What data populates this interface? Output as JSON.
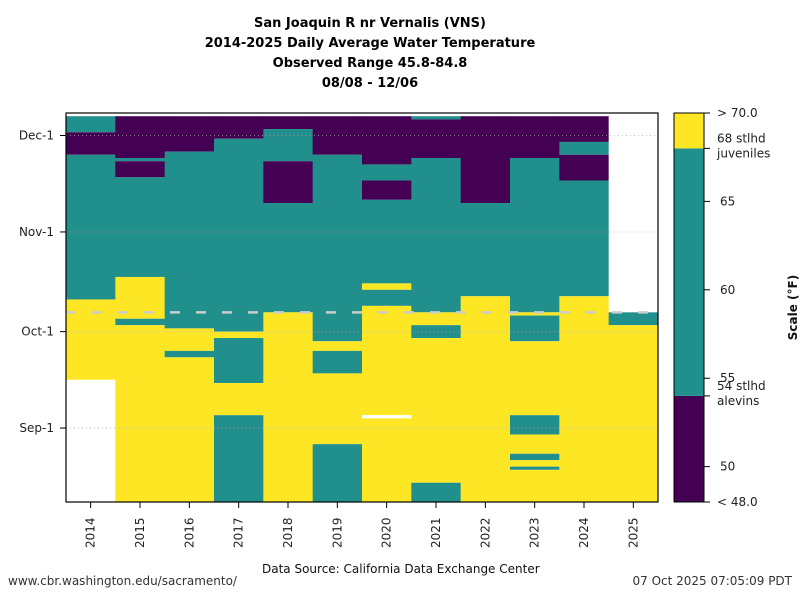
{
  "title_lines": [
    "San Joaquin R nr Vernalis (VNS)",
    "2014-2025 Daily Average Water Temperature",
    "Observed Range 45.8-84.8",
    "08/08 - 12/06"
  ],
  "footer": {
    "left": "www.cbr.washington.edu/sacramento/",
    "center": "Data Source: California Data Exchange Center",
    "right": "07 Oct 2025 07:05:09 PDT"
  },
  "chart_data": {
    "type": "heatmap",
    "title": "San Joaquin R nr Vernalis (VNS) 2014-2025 Daily Average Water Temperature",
    "subtitle": "Observed Range 45.8-84.8; 08/08 - 12/06",
    "xlabel": "",
    "ylabel": "",
    "date_range": [
      "08/08",
      "12/06"
    ],
    "x_categories": [
      "2014",
      "2015",
      "2016",
      "2017",
      "2018",
      "2019",
      "2020",
      "2021",
      "2022",
      "2023",
      "2024",
      "2025"
    ],
    "y_ticks": [
      {
        "label": "Sep-1",
        "date": "09/01"
      },
      {
        "label": "Oct-1",
        "date": "10/01"
      },
      {
        "label": "Nov-1",
        "date": "11/01"
      },
      {
        "label": "Dec-1",
        "date": "12/01"
      }
    ],
    "grid": true,
    "colors": {
      "low": "#440154",
      "mid": "#21908d",
      "high": "#fde725",
      "missing": "#ffffff"
    },
    "bins": [
      {
        "key": "low",
        "label": "< 54 (stlhd alevins)",
        "range": [
          48.0,
          54
        ]
      },
      {
        "key": "mid",
        "label": "54-68",
        "range": [
          54,
          68
        ]
      },
      {
        "key": "high",
        "label": "> 68 (stlhd juveniles)",
        "range": [
          68,
          70.0
        ]
      }
    ],
    "colorbar": {
      "label": "Scale (°F)",
      "min_label": "< 48.0",
      "max_label": "> 70.0",
      "min": 48.0,
      "max": 70.0,
      "ticks": [
        {
          "value": 50,
          "label": "50"
        },
        {
          "value": 55,
          "label": "55"
        },
        {
          "value": 60,
          "label": "60"
        },
        {
          "value": 65,
          "label": "65"
        }
      ],
      "thresholds": [
        {
          "value": 54,
          "label_lines": [
            "54 stlhd",
            "alevins"
          ]
        },
        {
          "value": 68,
          "label_lines": [
            "68 stlhd",
            "juveniles"
          ]
        }
      ]
    },
    "today_marker": {
      "date": "10/07",
      "style": "dashed"
    },
    "series": [
      {
        "name": "2014",
        "segments": [
          [
            "12/06",
            "12/01",
            "mid"
          ],
          [
            "12/01",
            "11/24",
            "low"
          ],
          [
            "11/24",
            "10/10",
            "mid"
          ],
          [
            "10/10",
            "09/15",
            "high"
          ],
          [
            "09/15",
            "08/08",
            null
          ]
        ]
      },
      {
        "name": "2015",
        "segments": [
          [
            "12/06",
            "11/23",
            "low"
          ],
          [
            "11/23",
            "11/22",
            "mid"
          ],
          [
            "11/22",
            "11/17",
            "low"
          ],
          [
            "11/17",
            "10/17",
            "mid"
          ],
          [
            "10/17",
            "10/04",
            "high"
          ],
          [
            "10/04",
            "10/02",
            "mid"
          ],
          [
            "10/02",
            "08/08",
            "high"
          ]
        ]
      },
      {
        "name": "2016",
        "segments": [
          [
            "12/06",
            "11/25",
            "low"
          ],
          [
            "11/25",
            "10/01",
            "mid"
          ],
          [
            "10/01",
            "09/24",
            "high"
          ],
          [
            "09/24",
            "09/22",
            "mid"
          ],
          [
            "09/22",
            "08/08",
            "high"
          ]
        ]
      },
      {
        "name": "2017",
        "segments": [
          [
            "12/06",
            "11/29",
            "low"
          ],
          [
            "11/29",
            "09/30",
            "mid"
          ],
          [
            "09/30",
            "09/28",
            "high"
          ],
          [
            "09/28",
            "09/14",
            "mid"
          ],
          [
            "09/14",
            "09/04",
            "high"
          ],
          [
            "09/04",
            "08/08",
            "mid"
          ]
        ]
      },
      {
        "name": "2018",
        "segments": [
          [
            "12/06",
            "12/02",
            "low"
          ],
          [
            "12/02",
            "11/22",
            "mid"
          ],
          [
            "11/22",
            "11/09",
            "low"
          ],
          [
            "11/09",
            "10/06",
            "mid"
          ],
          [
            "10/06",
            "08/08",
            "high"
          ]
        ]
      },
      {
        "name": "2019",
        "segments": [
          [
            "12/06",
            "11/24",
            "low"
          ],
          [
            "11/24",
            "09/27",
            "mid"
          ],
          [
            "09/27",
            "09/24",
            "high"
          ],
          [
            "09/24",
            "09/17",
            "mid"
          ],
          [
            "09/17",
            "08/26",
            "high"
          ],
          [
            "08/26",
            "08/08",
            "mid"
          ]
        ]
      },
      {
        "name": "2020",
        "segments": [
          [
            "12/06",
            "11/21",
            "low"
          ],
          [
            "11/21",
            "11/16",
            "mid"
          ],
          [
            "11/16",
            "11/10",
            "low"
          ],
          [
            "11/10",
            "10/15",
            "mid"
          ],
          [
            "10/15",
            "10/13",
            "high"
          ],
          [
            "10/13",
            "10/08",
            "mid"
          ],
          [
            "10/08",
            "09/04",
            "high"
          ],
          [
            "09/04",
            "09/03",
            null
          ],
          [
            "09/03",
            "08/08",
            "high"
          ]
        ]
      },
      {
        "name": "2021",
        "segments": [
          [
            "12/06",
            "12/05",
            "mid"
          ],
          [
            "12/05",
            "11/23",
            "low"
          ],
          [
            "11/23",
            "10/06",
            "mid"
          ],
          [
            "10/06",
            "10/02",
            "high"
          ],
          [
            "10/02",
            "09/28",
            "mid"
          ],
          [
            "09/28",
            "08/14",
            "high"
          ],
          [
            "08/14",
            "08/08",
            "mid"
          ]
        ]
      },
      {
        "name": "2022",
        "segments": [
          [
            "12/06",
            "11/09",
            "low"
          ],
          [
            "11/09",
            "10/11",
            "mid"
          ],
          [
            "10/11",
            "08/08",
            "high"
          ]
        ]
      },
      {
        "name": "2023",
        "segments": [
          [
            "12/06",
            "11/23",
            "low"
          ],
          [
            "11/23",
            "10/06",
            "mid"
          ],
          [
            "10/06",
            "10/05",
            "high"
          ],
          [
            "10/05",
            "09/27",
            "mid"
          ],
          [
            "09/27",
            "09/04",
            "high"
          ],
          [
            "09/04",
            "08/29",
            "mid"
          ],
          [
            "08/29",
            "08/23",
            "high"
          ],
          [
            "08/23",
            "08/21",
            "mid"
          ],
          [
            "08/21",
            "08/19",
            "high"
          ],
          [
            "08/19",
            "08/18",
            "mid"
          ],
          [
            "08/18",
            "08/08",
            "high"
          ]
        ]
      },
      {
        "name": "2024",
        "segments": [
          [
            "12/06",
            "11/28",
            "low"
          ],
          [
            "11/28",
            "11/24",
            "mid"
          ],
          [
            "11/24",
            "11/16",
            "low"
          ],
          [
            "11/16",
            "10/11",
            "mid"
          ],
          [
            "10/11",
            "08/08",
            "high"
          ]
        ]
      },
      {
        "name": "2025",
        "segments": [
          [
            "12/06",
            "10/06",
            null
          ],
          [
            "10/06",
            "10/02",
            "mid"
          ],
          [
            "10/02",
            "08/08",
            "high"
          ]
        ]
      }
    ]
  }
}
